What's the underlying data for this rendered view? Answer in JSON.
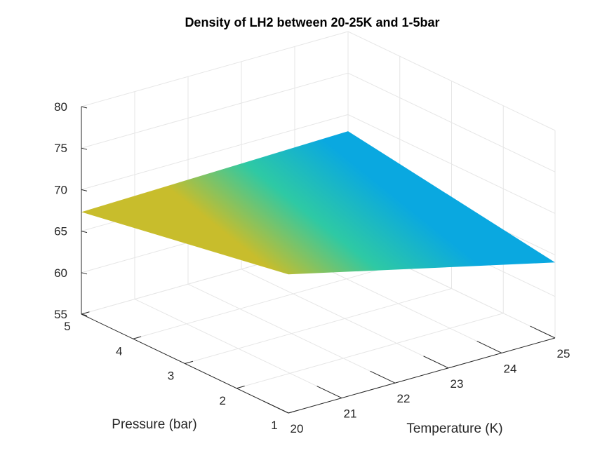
{
  "chart_data": {
    "type": "surface",
    "title": "Density of LH2 between 20-25K and 1-5bar",
    "xlabel": "Temperature (K)",
    "ylabel": "Pressure (bar)",
    "zlabel": "",
    "xlim": [
      20,
      25
    ],
    "ylim": [
      1,
      5
    ],
    "zlim": [
      55,
      80
    ],
    "x_ticks": [
      20,
      21,
      22,
      23,
      24,
      25
    ],
    "y_ticks": [
      1,
      2,
      3,
      4,
      5
    ],
    "z_ticks": [
      55,
      60,
      65,
      70,
      75,
      80
    ],
    "grid": true,
    "colormap": "parula",
    "corner_values": [
      {
        "temperature": 20,
        "pressure": 1,
        "density": 71.7
      },
      {
        "temperature": 25,
        "pressure": 1,
        "density": 64.1
      },
      {
        "temperature": 20,
        "pressure": 5,
        "density": 67.3
      },
      {
        "temperature": 25,
        "pressure": 5,
        "density": 68.0
      }
    ],
    "colors": {
      "low": "#0aa8e0",
      "mid": "#2ec9a4",
      "high": "#c8bd2c"
    }
  }
}
